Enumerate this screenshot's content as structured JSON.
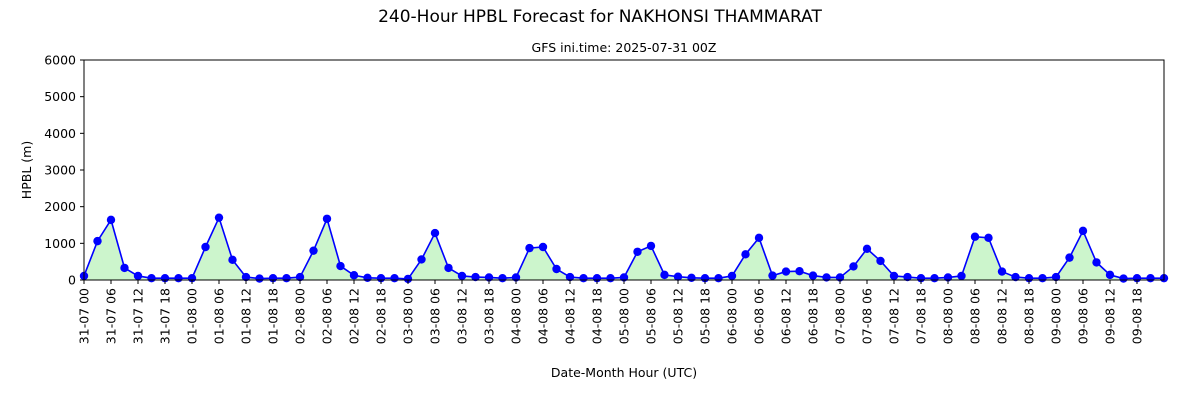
{
  "chart_data": {
    "type": "line",
    "title": "240-Hour HPBL Forecast for NAKHONSI THAMMARAT",
    "subtitle": "GFS ini.time: 2025-07-31 00Z",
    "xlabel": "Date-Month Hour (UTC)",
    "ylabel": "HPBL (m)",
    "ylim": [
      0,
      6000
    ],
    "yticks": [
      0,
      1000,
      2000,
      3000,
      4000,
      5000,
      6000
    ],
    "x_start_label": "31-07 00",
    "x_step_hours": 3,
    "xlim_index": [
      0,
      80
    ],
    "xtick_labels": [
      "31-07 00",
      "31-07 06",
      "31-07 12",
      "31-07 18",
      "01-08 00",
      "01-08 06",
      "01-08 12",
      "01-08 18",
      "02-08 00",
      "02-08 06",
      "02-08 12",
      "02-08 18",
      "03-08 00",
      "03-08 06",
      "03-08 12",
      "03-08 18",
      "04-08 00",
      "04-08 06",
      "04-08 12",
      "04-08 18",
      "05-08 00",
      "05-08 06",
      "05-08 12",
      "05-08 18",
      "06-08 00",
      "06-08 06",
      "06-08 12",
      "06-08 18",
      "07-08 00",
      "07-08 06",
      "07-08 12",
      "07-08 18",
      "08-08 00",
      "08-08 06",
      "08-08 12",
      "08-08 18",
      "09-08 00",
      "09-08 06",
      "09-08 12",
      "09-08 18"
    ],
    "grid": false,
    "line_color": "#0000ff",
    "fill_color": "#ccf5cc",
    "series": [
      {
        "values": [
          110,
          1060,
          1640,
          330,
          110,
          50,
          50,
          50,
          50,
          900,
          1700,
          550,
          80,
          40,
          50,
          50,
          80,
          800,
          1670,
          380,
          130,
          60,
          50,
          50,
          30,
          560,
          1280,
          330,
          110,
          80,
          70,
          50,
          70,
          870,
          900,
          300,
          80,
          50,
          50,
          50,
          70,
          770,
          930,
          140,
          90,
          60,
          50,
          50,
          110,
          700,
          1150,
          120,
          230,
          240,
          120,
          70,
          70,
          370,
          850,
          520,
          110,
          80,
          50,
          50,
          70,
          110,
          1180,
          1150,
          230,
          80,
          50,
          50,
          80,
          610,
          1340,
          480,
          140,
          40,
          50,
          50,
          50
        ]
      }
    ]
  }
}
